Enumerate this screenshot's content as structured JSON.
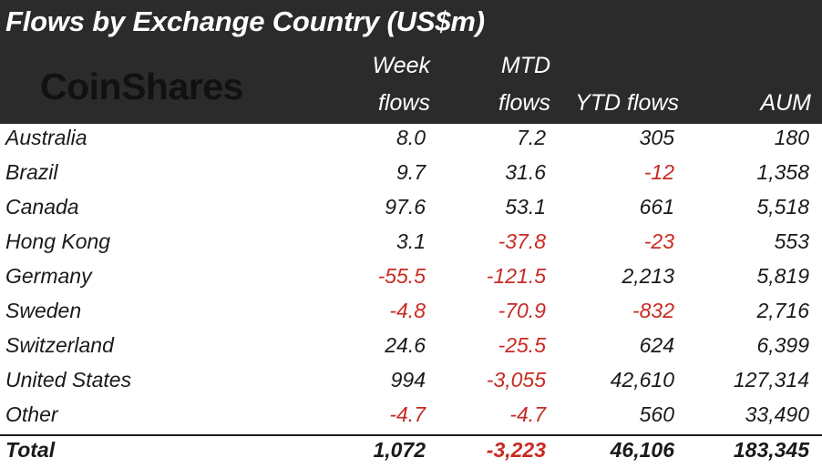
{
  "title": "Flows by Exchange Country (US$m)",
  "logo_text": "CoinShares",
  "colors": {
    "header_bg": "#2b2b2b",
    "negative": "#c82a22",
    "text": "#1a1a1a"
  },
  "columns": {
    "week_line1": "Week",
    "week_line2": "flows",
    "mtd_line1": "MTD",
    "mtd_line2": "flows",
    "ytd": "YTD flows",
    "aum": "AUM"
  },
  "chart_data": {
    "type": "table",
    "title": "Flows by Exchange Country (US$m)",
    "columns": [
      "Week flows",
      "MTD flows",
      "YTD flows",
      "AUM"
    ],
    "rows": [
      {
        "name": "Australia",
        "week": "8.0",
        "mtd": "7.2",
        "ytd": "305",
        "aum": "180"
      },
      {
        "name": "Brazil",
        "week": "9.7",
        "mtd": "31.6",
        "ytd": "-12",
        "aum": "1,358"
      },
      {
        "name": "Canada",
        "week": "97.6",
        "mtd": "53.1",
        "ytd": "661",
        "aum": "5,518"
      },
      {
        "name": "Hong Kong",
        "week": "3.1",
        "mtd": "-37.8",
        "ytd": "-23",
        "aum": "553"
      },
      {
        "name": "Germany",
        "week": "-55.5",
        "mtd": "-121.5",
        "ytd": "2,213",
        "aum": "5,819"
      },
      {
        "name": "Sweden",
        "week": "-4.8",
        "mtd": "-70.9",
        "ytd": "-832",
        "aum": "2,716"
      },
      {
        "name": "Switzerland",
        "week": "24.6",
        "mtd": "-25.5",
        "ytd": "624",
        "aum": "6,399"
      },
      {
        "name": "United States",
        "week": "994",
        "mtd": "-3,055",
        "ytd": "42,610",
        "aum": "127,314"
      },
      {
        "name": "Other",
        "week": "-4.7",
        "mtd": "-4.7",
        "ytd": "560",
        "aum": "33,490"
      }
    ],
    "total": {
      "name": "Total",
      "week": "1,072",
      "mtd": "-3,223",
      "ytd": "46,106",
      "aum": "183,345"
    }
  }
}
